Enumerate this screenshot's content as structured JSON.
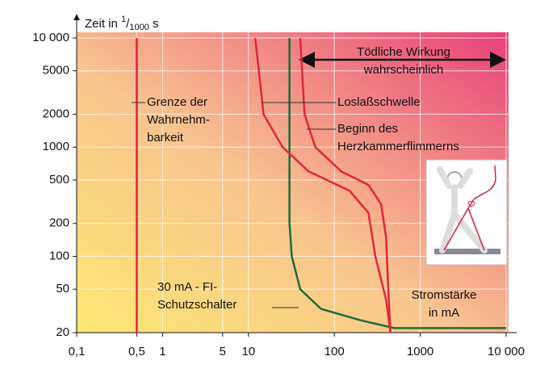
{
  "chart_data": {
    "type": "line",
    "y_label": {
      "text": "Zeit in",
      "numerator": "1",
      "denominator": "1000",
      "unit": "s"
    },
    "x_label": [
      "Stromstärke",
      "in mA"
    ],
    "xscale": "log",
    "yscale": "log",
    "grid": true,
    "xlim": [
      0.1,
      10000
    ],
    "ylim": [
      20,
      10000
    ],
    "xticks": [
      {
        "value": 0.1,
        "label": "0,1"
      },
      {
        "value": 0.5,
        "label": "0,5"
      },
      1,
      5,
      10,
      100,
      1000,
      {
        "value": 10000,
        "label": "10 000"
      }
    ],
    "yticks": [
      20,
      50,
      100,
      200,
      500,
      1000,
      2000,
      5000,
      {
        "value": 10000,
        "label": "10 000"
      }
    ],
    "series": [
      {
        "color": "#e0263a",
        "x": [
          0.5,
          0.5
        ],
        "values": [
          20,
          10000
        ]
      },
      {
        "color": "#1e6b3a",
        "x": [
          30,
          30,
          32,
          40,
          70,
          200,
          500,
          10000
        ],
        "values": [
          10000,
          200,
          100,
          50,
          33,
          26,
          22,
          22
        ]
      },
      {
        "color": "#e0263a",
        "x": [
          12,
          15,
          25,
          50,
          150,
          250,
          300,
          400,
          450
        ],
        "values": [
          10000,
          2000,
          1000,
          600,
          400,
          250,
          100,
          40,
          20
        ]
      },
      {
        "color": "#e0263a",
        "x": [
          40,
          45,
          60,
          120,
          250,
          350,
          400,
          420,
          450
        ],
        "values": [
          10000,
          2000,
          1000,
          600,
          450,
          300,
          150,
          60,
          20
        ]
      }
    ],
    "annotations": [
      [
        "Grenze der",
        "Wahrnehm-",
        "barkeit"
      ],
      [
        "Loslaßschwelle"
      ],
      [
        "Beginn des",
        "Herzkammerflimmerns"
      ],
      [
        "30 mA - FI-",
        "Schutzschalter"
      ],
      [
        "Tödliche Wirkung",
        "wahrscheinlich"
      ]
    ]
  }
}
